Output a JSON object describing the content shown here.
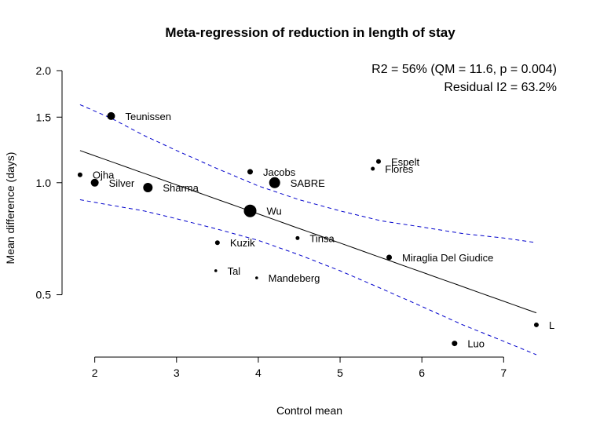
{
  "chart_data": {
    "type": "scatter",
    "title": "Meta-regression of reduction in length of stay",
    "xlabel": "Control mean",
    "ylabel": "Mean difference (days)",
    "xlim": [
      1.6,
      7.65
    ],
    "ylim": [
      0.34,
      2.12
    ],
    "y_scale": "log",
    "xticks": [
      "2",
      "3",
      "4",
      "5",
      "6",
      "7"
    ],
    "yticks": [
      "0.5",
      "1.0",
      "1.5",
      "2.0"
    ],
    "grid": false,
    "annotations": [
      "R2 = 56% (QM = 11.6, p = 0.004)",
      "Residual I2 = 63.2%"
    ],
    "points": [
      {
        "label": "Teunissen",
        "x": 2.2,
        "y": 1.51,
        "weight": 5,
        "color": "#000000"
      },
      {
        "label": "Ojha",
        "x": 1.82,
        "y": 1.05,
        "weight": 3,
        "color": "#000000"
      },
      {
        "label": "Silver",
        "x": 2.0,
        "y": 1.0,
        "weight": 5,
        "color": "#000000"
      },
      {
        "label": "Sharma",
        "x": 2.65,
        "y": 0.97,
        "weight": 6,
        "color": "#000000"
      },
      {
        "label": "Jacobs",
        "x": 3.9,
        "y": 1.07,
        "weight": 3.5,
        "color": "#000000"
      },
      {
        "label": "SABRE",
        "x": 4.2,
        "y": 1.0,
        "weight": 7,
        "color": "#000000"
      },
      {
        "label": "Wu",
        "x": 3.9,
        "y": 0.84,
        "weight": 8,
        "color": "#000000"
      },
      {
        "label": "Espelt",
        "x": 5.47,
        "y": 1.14,
        "weight": 3,
        "color": "#000000"
      },
      {
        "label": "Flores",
        "x": 5.4,
        "y": 1.09,
        "weight": 2.5,
        "color": "#cc0000"
      },
      {
        "label": "Kuzik",
        "x": 3.5,
        "y": 0.69,
        "weight": 3,
        "color": "#000000"
      },
      {
        "label": "Tinsa",
        "x": 4.48,
        "y": 0.71,
        "weight": 2.5,
        "color": "#000000"
      },
      {
        "label": "Miraglia Del Giudice",
        "x": 5.6,
        "y": 0.63,
        "weight": 3.5,
        "color": "#000000"
      },
      {
        "label": "Tal",
        "x": 3.48,
        "y": 0.58,
        "weight": 1.8,
        "color": "#000000"
      },
      {
        "label": "Mandeberg",
        "x": 3.98,
        "y": 0.555,
        "weight": 1.8,
        "color": "#000000"
      },
      {
        "label": "L",
        "x": 7.4,
        "y": 0.415,
        "weight": 3,
        "color": "#000000"
      },
      {
        "label": "Luo",
        "x": 6.4,
        "y": 0.37,
        "weight": 3.5,
        "color": "#000000"
      }
    ],
    "regression_line": {
      "x": [
        1.82,
        7.4
      ],
      "y": [
        1.22,
        0.447
      ],
      "color": "#000000"
    },
    "ci_upper": {
      "x": [
        1.82,
        2.2,
        2.6,
        3.0,
        3.5,
        4.0,
        4.5,
        5.0,
        5.5,
        6.0,
        6.5,
        7.0,
        7.4
      ],
      "y": [
        1.62,
        1.49,
        1.34,
        1.22,
        1.09,
        0.98,
        0.9,
        0.84,
        0.79,
        0.76,
        0.73,
        0.71,
        0.69
      ],
      "color": "#0000cc"
    },
    "ci_lower": {
      "x": [
        1.82,
        2.2,
        2.6,
        3.0,
        3.5,
        4.0,
        4.5,
        5.0,
        5.5,
        6.0,
        6.5,
        7.0,
        7.4
      ],
      "y": [
        0.9,
        0.87,
        0.84,
        0.8,
        0.75,
        0.7,
        0.64,
        0.58,
        0.52,
        0.465,
        0.415,
        0.375,
        0.345
      ],
      "color": "#0000cc"
    }
  }
}
